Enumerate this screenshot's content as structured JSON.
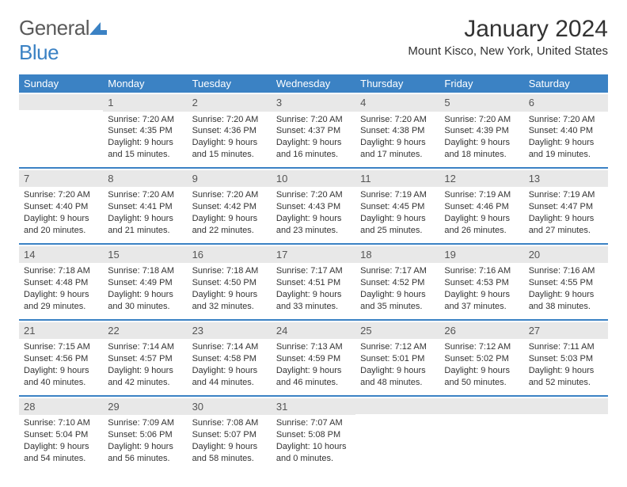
{
  "logo": {
    "text1": "General",
    "text2": "Blue"
  },
  "title": "January 2024",
  "location": "Mount Kisco, New York, United States",
  "colors": {
    "accent": "#3b82c4",
    "daynum_bg": "#e8e8e8",
    "text": "#333333",
    "logo_gray": "#5a5a5a",
    "background": "#ffffff"
  },
  "typography": {
    "title_fontsize": 30,
    "location_fontsize": 15,
    "dow_fontsize": 13,
    "daynum_fontsize": 13,
    "cell_fontsize": 11,
    "logo_fontsize": 26
  },
  "days_of_week": [
    "Sunday",
    "Monday",
    "Tuesday",
    "Wednesday",
    "Thursday",
    "Friday",
    "Saturday"
  ],
  "weeks": [
    [
      {
        "num": "",
        "sunrise": "",
        "sunset": "",
        "daylight1": "",
        "daylight2": ""
      },
      {
        "num": "1",
        "sunrise": "Sunrise: 7:20 AM",
        "sunset": "Sunset: 4:35 PM",
        "daylight1": "Daylight: 9 hours",
        "daylight2": "and 15 minutes."
      },
      {
        "num": "2",
        "sunrise": "Sunrise: 7:20 AM",
        "sunset": "Sunset: 4:36 PM",
        "daylight1": "Daylight: 9 hours",
        "daylight2": "and 15 minutes."
      },
      {
        "num": "3",
        "sunrise": "Sunrise: 7:20 AM",
        "sunset": "Sunset: 4:37 PM",
        "daylight1": "Daylight: 9 hours",
        "daylight2": "and 16 minutes."
      },
      {
        "num": "4",
        "sunrise": "Sunrise: 7:20 AM",
        "sunset": "Sunset: 4:38 PM",
        "daylight1": "Daylight: 9 hours",
        "daylight2": "and 17 minutes."
      },
      {
        "num": "5",
        "sunrise": "Sunrise: 7:20 AM",
        "sunset": "Sunset: 4:39 PM",
        "daylight1": "Daylight: 9 hours",
        "daylight2": "and 18 minutes."
      },
      {
        "num": "6",
        "sunrise": "Sunrise: 7:20 AM",
        "sunset": "Sunset: 4:40 PM",
        "daylight1": "Daylight: 9 hours",
        "daylight2": "and 19 minutes."
      }
    ],
    [
      {
        "num": "7",
        "sunrise": "Sunrise: 7:20 AM",
        "sunset": "Sunset: 4:40 PM",
        "daylight1": "Daylight: 9 hours",
        "daylight2": "and 20 minutes."
      },
      {
        "num": "8",
        "sunrise": "Sunrise: 7:20 AM",
        "sunset": "Sunset: 4:41 PM",
        "daylight1": "Daylight: 9 hours",
        "daylight2": "and 21 minutes."
      },
      {
        "num": "9",
        "sunrise": "Sunrise: 7:20 AM",
        "sunset": "Sunset: 4:42 PM",
        "daylight1": "Daylight: 9 hours",
        "daylight2": "and 22 minutes."
      },
      {
        "num": "10",
        "sunrise": "Sunrise: 7:20 AM",
        "sunset": "Sunset: 4:43 PM",
        "daylight1": "Daylight: 9 hours",
        "daylight2": "and 23 minutes."
      },
      {
        "num": "11",
        "sunrise": "Sunrise: 7:19 AM",
        "sunset": "Sunset: 4:45 PM",
        "daylight1": "Daylight: 9 hours",
        "daylight2": "and 25 minutes."
      },
      {
        "num": "12",
        "sunrise": "Sunrise: 7:19 AM",
        "sunset": "Sunset: 4:46 PM",
        "daylight1": "Daylight: 9 hours",
        "daylight2": "and 26 minutes."
      },
      {
        "num": "13",
        "sunrise": "Sunrise: 7:19 AM",
        "sunset": "Sunset: 4:47 PM",
        "daylight1": "Daylight: 9 hours",
        "daylight2": "and 27 minutes."
      }
    ],
    [
      {
        "num": "14",
        "sunrise": "Sunrise: 7:18 AM",
        "sunset": "Sunset: 4:48 PM",
        "daylight1": "Daylight: 9 hours",
        "daylight2": "and 29 minutes."
      },
      {
        "num": "15",
        "sunrise": "Sunrise: 7:18 AM",
        "sunset": "Sunset: 4:49 PM",
        "daylight1": "Daylight: 9 hours",
        "daylight2": "and 30 minutes."
      },
      {
        "num": "16",
        "sunrise": "Sunrise: 7:18 AM",
        "sunset": "Sunset: 4:50 PM",
        "daylight1": "Daylight: 9 hours",
        "daylight2": "and 32 minutes."
      },
      {
        "num": "17",
        "sunrise": "Sunrise: 7:17 AM",
        "sunset": "Sunset: 4:51 PM",
        "daylight1": "Daylight: 9 hours",
        "daylight2": "and 33 minutes."
      },
      {
        "num": "18",
        "sunrise": "Sunrise: 7:17 AM",
        "sunset": "Sunset: 4:52 PM",
        "daylight1": "Daylight: 9 hours",
        "daylight2": "and 35 minutes."
      },
      {
        "num": "19",
        "sunrise": "Sunrise: 7:16 AM",
        "sunset": "Sunset: 4:53 PM",
        "daylight1": "Daylight: 9 hours",
        "daylight2": "and 37 minutes."
      },
      {
        "num": "20",
        "sunrise": "Sunrise: 7:16 AM",
        "sunset": "Sunset: 4:55 PM",
        "daylight1": "Daylight: 9 hours",
        "daylight2": "and 38 minutes."
      }
    ],
    [
      {
        "num": "21",
        "sunrise": "Sunrise: 7:15 AM",
        "sunset": "Sunset: 4:56 PM",
        "daylight1": "Daylight: 9 hours",
        "daylight2": "and 40 minutes."
      },
      {
        "num": "22",
        "sunrise": "Sunrise: 7:14 AM",
        "sunset": "Sunset: 4:57 PM",
        "daylight1": "Daylight: 9 hours",
        "daylight2": "and 42 minutes."
      },
      {
        "num": "23",
        "sunrise": "Sunrise: 7:14 AM",
        "sunset": "Sunset: 4:58 PM",
        "daylight1": "Daylight: 9 hours",
        "daylight2": "and 44 minutes."
      },
      {
        "num": "24",
        "sunrise": "Sunrise: 7:13 AM",
        "sunset": "Sunset: 4:59 PM",
        "daylight1": "Daylight: 9 hours",
        "daylight2": "and 46 minutes."
      },
      {
        "num": "25",
        "sunrise": "Sunrise: 7:12 AM",
        "sunset": "Sunset: 5:01 PM",
        "daylight1": "Daylight: 9 hours",
        "daylight2": "and 48 minutes."
      },
      {
        "num": "26",
        "sunrise": "Sunrise: 7:12 AM",
        "sunset": "Sunset: 5:02 PM",
        "daylight1": "Daylight: 9 hours",
        "daylight2": "and 50 minutes."
      },
      {
        "num": "27",
        "sunrise": "Sunrise: 7:11 AM",
        "sunset": "Sunset: 5:03 PM",
        "daylight1": "Daylight: 9 hours",
        "daylight2": "and 52 minutes."
      }
    ],
    [
      {
        "num": "28",
        "sunrise": "Sunrise: 7:10 AM",
        "sunset": "Sunset: 5:04 PM",
        "daylight1": "Daylight: 9 hours",
        "daylight2": "and 54 minutes."
      },
      {
        "num": "29",
        "sunrise": "Sunrise: 7:09 AM",
        "sunset": "Sunset: 5:06 PM",
        "daylight1": "Daylight: 9 hours",
        "daylight2": "and 56 minutes."
      },
      {
        "num": "30",
        "sunrise": "Sunrise: 7:08 AM",
        "sunset": "Sunset: 5:07 PM",
        "daylight1": "Daylight: 9 hours",
        "daylight2": "and 58 minutes."
      },
      {
        "num": "31",
        "sunrise": "Sunrise: 7:07 AM",
        "sunset": "Sunset: 5:08 PM",
        "daylight1": "Daylight: 10 hours",
        "daylight2": "and 0 minutes."
      },
      {
        "num": "",
        "sunrise": "",
        "sunset": "",
        "daylight1": "",
        "daylight2": ""
      },
      {
        "num": "",
        "sunrise": "",
        "sunset": "",
        "daylight1": "",
        "daylight2": ""
      },
      {
        "num": "",
        "sunrise": "",
        "sunset": "",
        "daylight1": "",
        "daylight2": ""
      }
    ]
  ]
}
